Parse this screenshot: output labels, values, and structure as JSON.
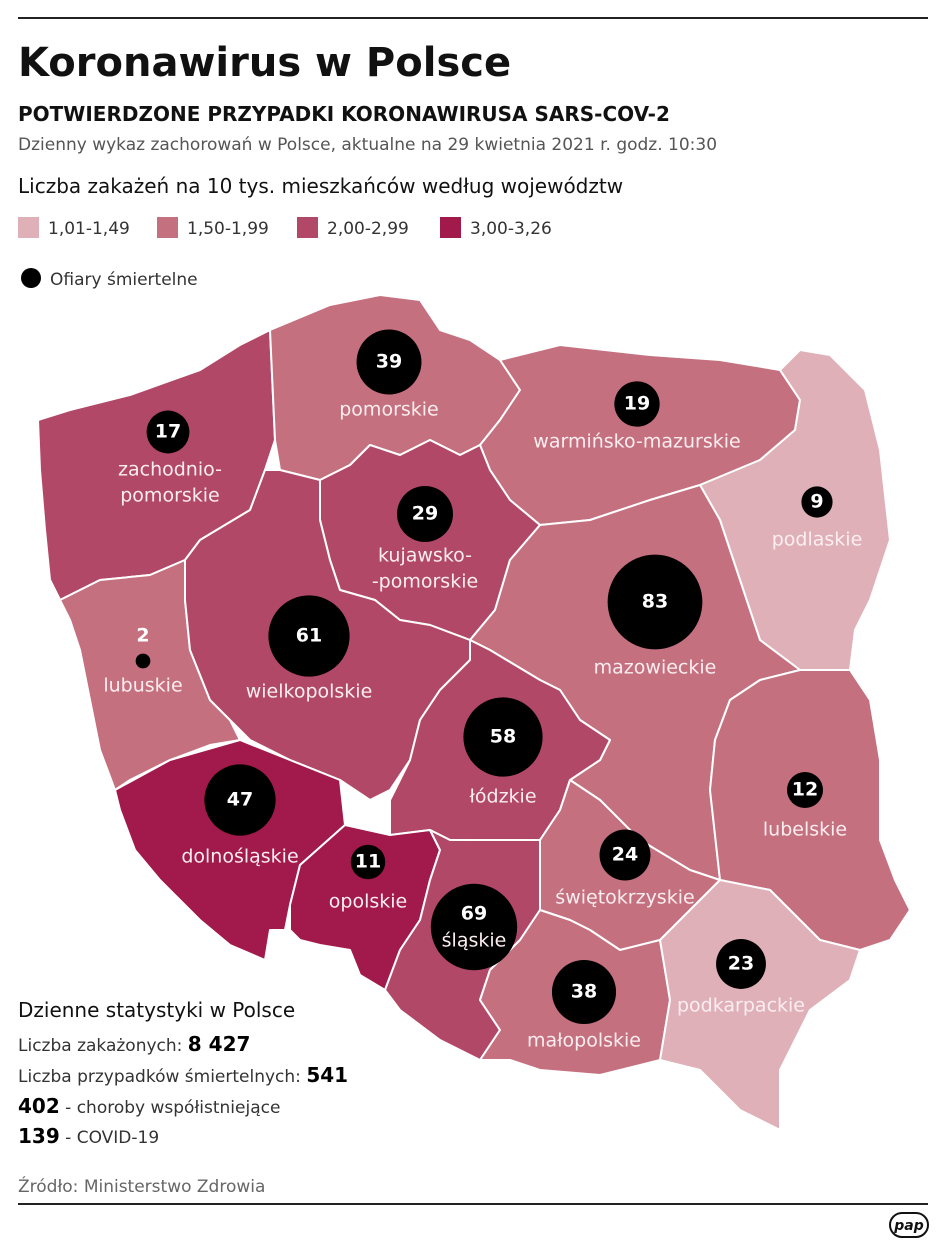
{
  "header": {
    "title": "Koronawirus w Polsce",
    "subtitle": "POTWIERDZONE PRZYPADKI KORONAWIRUSA SARS-COV-2",
    "description": "Dzienny wykaz zachorowań w Polsce, aktualne na 29 kwietnia 2021 r. godz. 10:30"
  },
  "legend": {
    "title": "Liczba zakażeń na 10 tys. mieszkańców według województw",
    "classes": [
      {
        "label": "1,01-1,49",
        "color": "#dfb0b8"
      },
      {
        "label": "1,50-1,99",
        "color": "#c5707f"
      },
      {
        "label": "2,00-2,99",
        "color": "#b24867"
      },
      {
        "label": "3,00-3,26",
        "color": "#a2194b"
      }
    ],
    "deaths_label": "Ofiary śmiertelne"
  },
  "regions": [
    {
      "name": [
        "zachodnio-",
        "pomorskie"
      ],
      "deaths": 17,
      "color": "#b24867"
    },
    {
      "name": [
        "pomorskie"
      ],
      "deaths": 39,
      "color": "#c5707f"
    },
    {
      "name": [
        "warmińsko-mazurskie"
      ],
      "deaths": 19,
      "color": "#c5707f"
    },
    {
      "name": [
        "podlaskie"
      ],
      "deaths": 9,
      "color": "#dfb0b8"
    },
    {
      "name": [
        "kujawsko-",
        "-pomorskie"
      ],
      "deaths": 29,
      "color": "#b24867"
    },
    {
      "name": [
        "lubuskie"
      ],
      "deaths": 2,
      "color": "#c5707f"
    },
    {
      "name": [
        "wielkopolskie"
      ],
      "deaths": 61,
      "color": "#b24867"
    },
    {
      "name": [
        "mazowieckie"
      ],
      "deaths": 83,
      "color": "#c5707f"
    },
    {
      "name": [
        "łódzkie"
      ],
      "deaths": 58,
      "color": "#b24867"
    },
    {
      "name": [
        "lubelskie"
      ],
      "deaths": 12,
      "color": "#c5707f"
    },
    {
      "name": [
        "dolnośląskie"
      ],
      "deaths": 47,
      "color": "#a2194b"
    },
    {
      "name": [
        "opolskie"
      ],
      "deaths": 11,
      "color": "#a2194b"
    },
    {
      "name": [
        "świętokrzyskie"
      ],
      "deaths": 24,
      "color": "#c5707f"
    },
    {
      "name": [
        "śląskie"
      ],
      "deaths": 69,
      "color": "#b24867"
    },
    {
      "name": [
        "małopolskie"
      ],
      "deaths": 38,
      "color": "#c5707f"
    },
    {
      "name": [
        "podkarpackie"
      ],
      "deaths": 23,
      "color": "#dfb0b8"
    }
  ],
  "stats": {
    "title": "Dzienne statystyki w Polsce",
    "infections": {
      "label": "Liczba zakażonych:",
      "value": "8 427"
    },
    "deaths": {
      "label": "Liczba przypadków śmiertelnych:",
      "value": "541"
    },
    "comorbid": {
      "value": "402",
      "label": "- choroby współistniejące"
    },
    "covid": {
      "value": "139",
      "label": "- COVID-19"
    }
  },
  "source": "Źródło: Ministerstwo Zdrowia",
  "logo": "pap"
}
